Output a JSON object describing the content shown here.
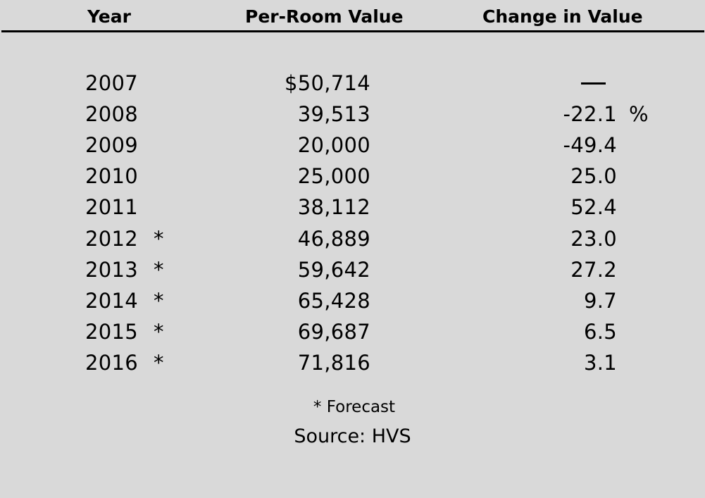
{
  "chart_data": {
    "type": "table",
    "columns": [
      "Year",
      "Per-Room Value",
      "Change in Value"
    ],
    "rows": [
      {
        "year": "2007",
        "forecast_mark": "",
        "value": "$50,714",
        "change": "",
        "change_unit": ""
      },
      {
        "year": "2008",
        "forecast_mark": "",
        "value": "39,513",
        "change": "-22.1",
        "change_unit": "%"
      },
      {
        "year": "2009",
        "forecast_mark": "",
        "value": "20,000",
        "change": "-49.4",
        "change_unit": ""
      },
      {
        "year": "2010",
        "forecast_mark": "",
        "value": "25,000",
        "change": "25.0",
        "change_unit": ""
      },
      {
        "year": "2011",
        "forecast_mark": "",
        "value": "38,112",
        "change": "52.4",
        "change_unit": ""
      },
      {
        "year": "2012",
        "forecast_mark": "*",
        "value": "46,889",
        "change": "23.0",
        "change_unit": ""
      },
      {
        "year": "2013",
        "forecast_mark": "*",
        "value": "59,642",
        "change": "27.2",
        "change_unit": ""
      },
      {
        "year": "2014",
        "forecast_mark": "*",
        "value": "65,428",
        "change": "9.7",
        "change_unit": ""
      },
      {
        "year": "2015",
        "forecast_mark": "*",
        "value": "69,687",
        "change": "6.5",
        "change_unit": ""
      },
      {
        "year": "2016",
        "forecast_mark": "*",
        "value": "71,816",
        "change": "3.1",
        "change_unit": ""
      }
    ],
    "per_room_values": [
      50714,
      39513,
      20000,
      25000,
      38112,
      46889,
      59642,
      65428,
      69687,
      71816
    ],
    "change_in_value_percent": [
      null,
      -22.1,
      -49.4,
      25.0,
      52.4,
      23.0,
      27.2,
      9.7,
      6.5,
      3.1
    ],
    "first_row_change_symbol": "em-dash",
    "footnote": "* Forecast",
    "source": "Source: HVS"
  },
  "colors": {
    "background": "#d9d9d9",
    "text": "#000000",
    "rule": "#000000"
  }
}
